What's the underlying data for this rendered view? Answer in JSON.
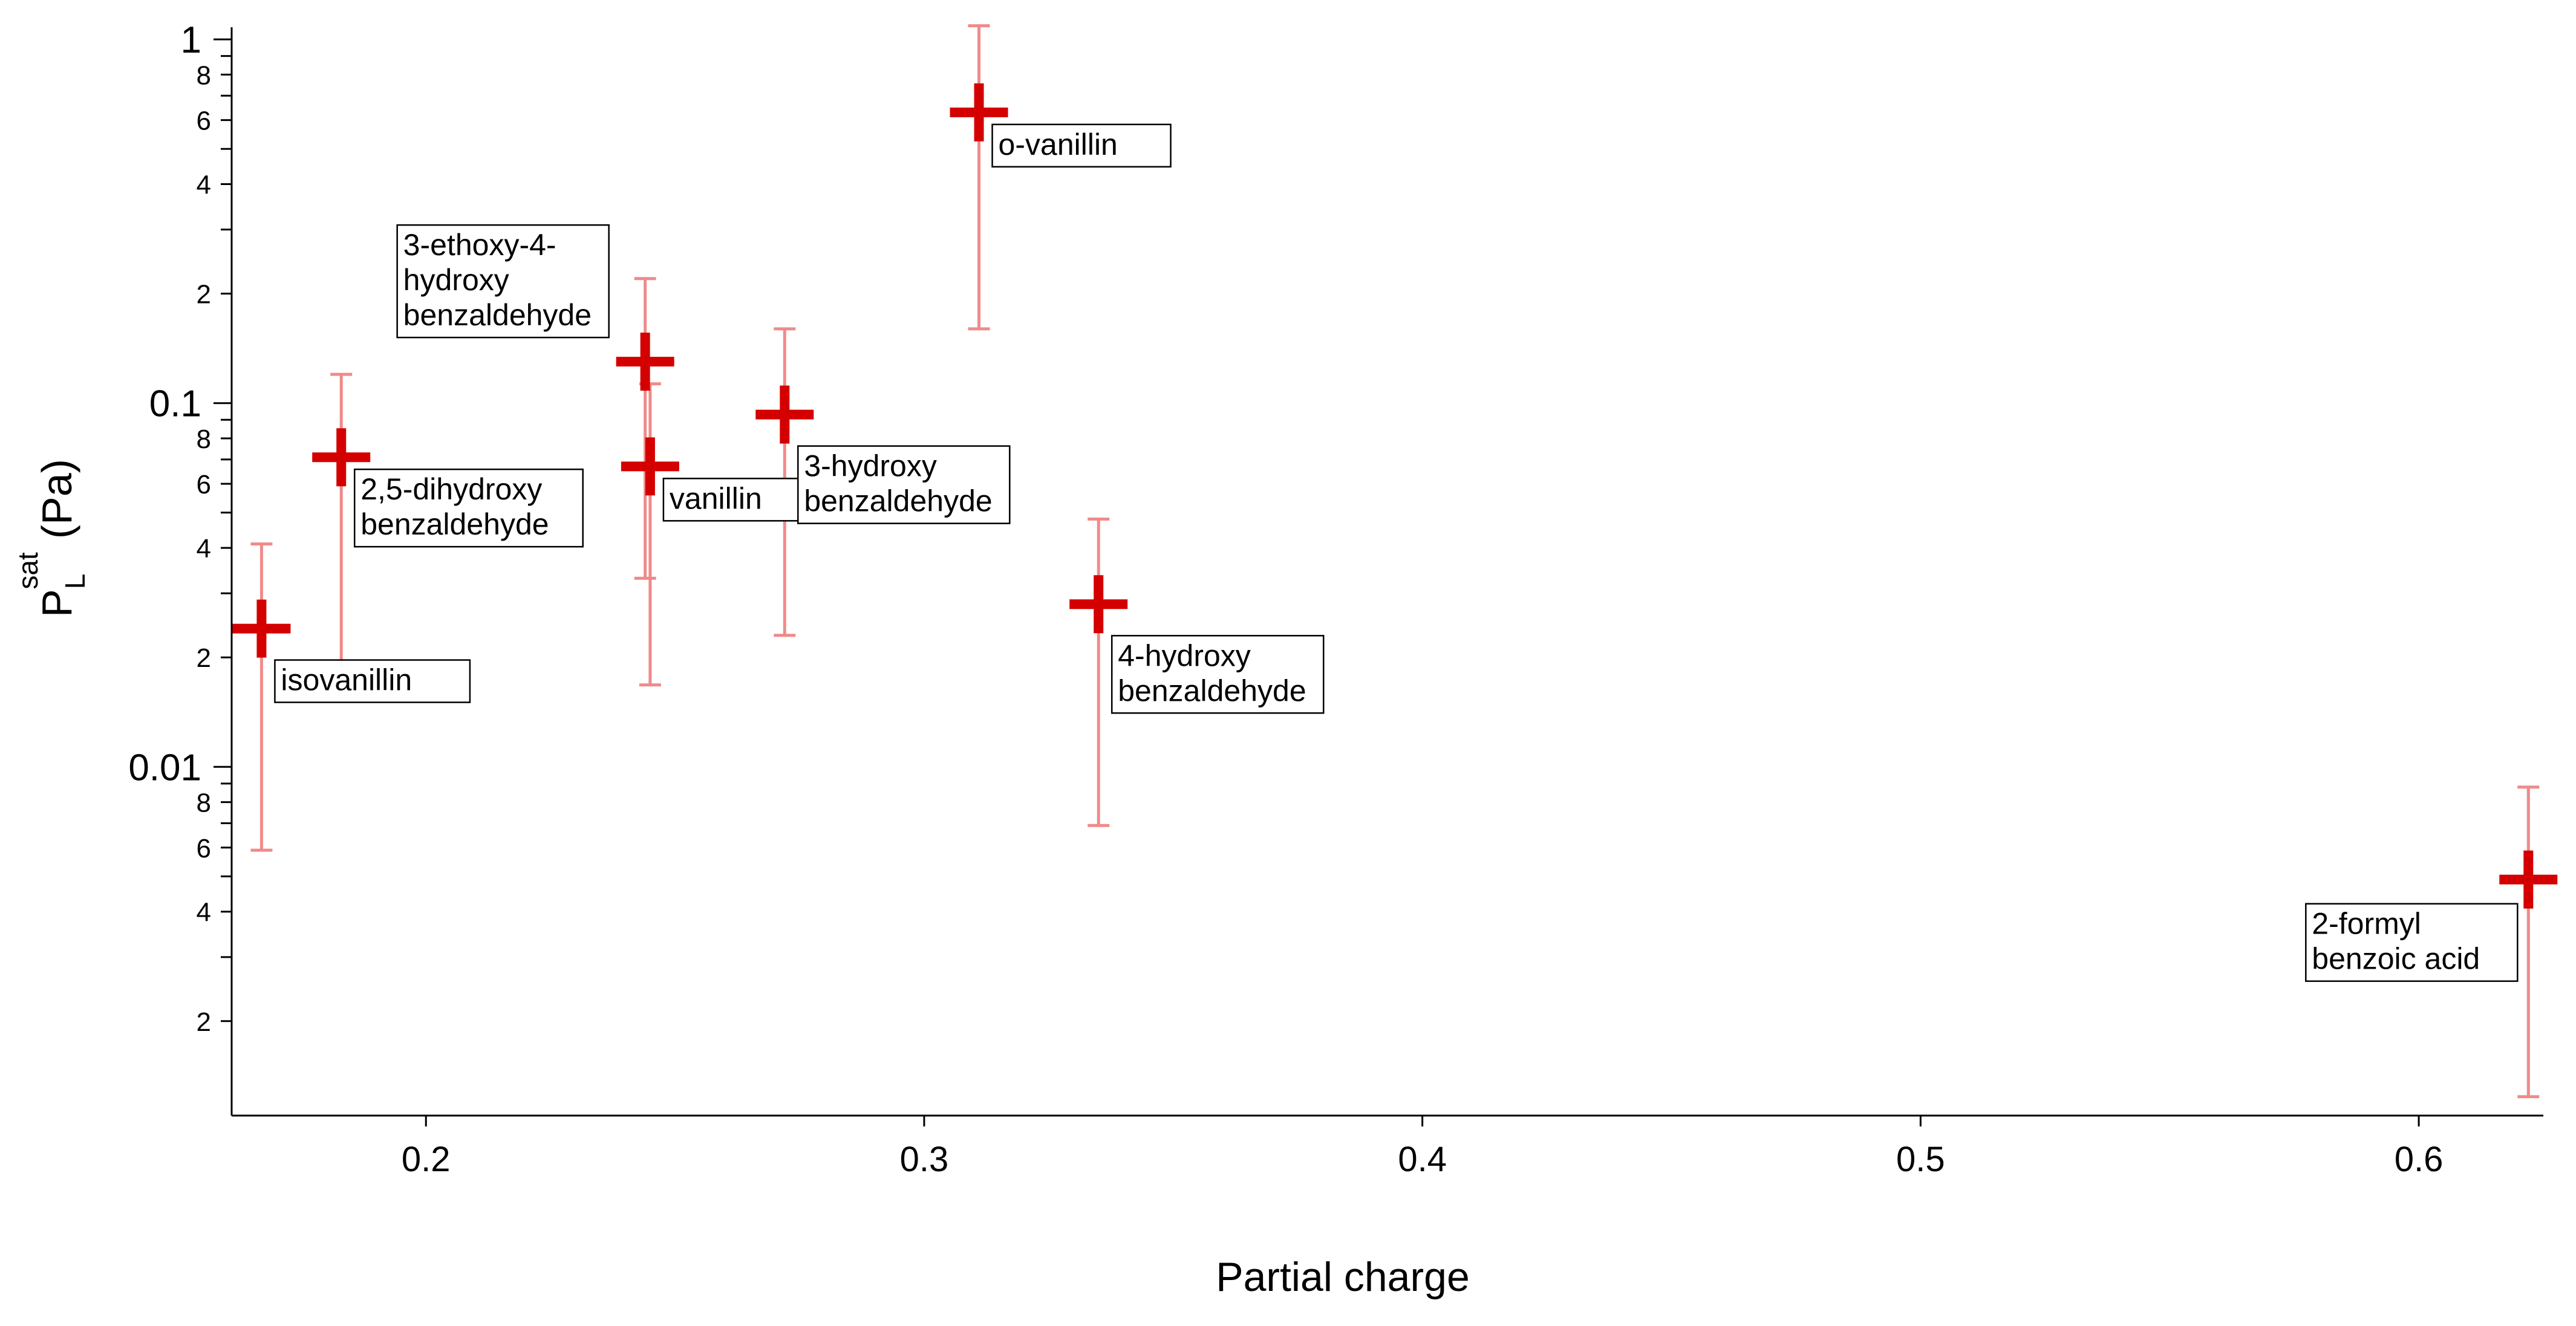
{
  "chart_data": {
    "type": "scatter",
    "title": "",
    "xlabel": "Partial charge",
    "ylabel": {
      "main": "P",
      "sub": "L",
      "sup": "sat",
      "unit": "(Pa)"
    },
    "xlim": [
      0.161,
      0.625
    ],
    "ylim": [
      0.0011,
      1.08
    ],
    "yscale": "log",
    "x_ticks": [
      {
        "value": 0.2,
        "label": "0.2"
      },
      {
        "value": 0.3,
        "label": "0.3"
      },
      {
        "value": 0.4,
        "label": "0.4"
      },
      {
        "value": 0.5,
        "label": "0.5"
      },
      {
        "value": 0.6,
        "label": "0.6"
      }
    ],
    "y_major_ticks": [
      {
        "value": 0.01,
        "label": "0.01"
      },
      {
        "value": 0.1,
        "label": "0.1"
      },
      {
        "value": 1,
        "label": "1"
      }
    ],
    "y_minor_ticks": [
      {
        "value": 0.002,
        "label": "2"
      },
      {
        "value": 0.003,
        "label": ""
      },
      {
        "value": 0.004,
        "label": "4"
      },
      {
        "value": 0.005,
        "label": ""
      },
      {
        "value": 0.006,
        "label": "6"
      },
      {
        "value": 0.007,
        "label": ""
      },
      {
        "value": 0.008,
        "label": "8"
      },
      {
        "value": 0.009,
        "label": ""
      },
      {
        "value": 0.02,
        "label": "2"
      },
      {
        "value": 0.03,
        "label": ""
      },
      {
        "value": 0.04,
        "label": "4"
      },
      {
        "value": 0.05,
        "label": ""
      },
      {
        "value": 0.06,
        "label": "6"
      },
      {
        "value": 0.07,
        "label": ""
      },
      {
        "value": 0.08,
        "label": "8"
      },
      {
        "value": 0.09,
        "label": ""
      },
      {
        "value": 0.2,
        "label": "2"
      },
      {
        "value": 0.3,
        "label": ""
      },
      {
        "value": 0.4,
        "label": "4"
      },
      {
        "value": 0.5,
        "label": ""
      },
      {
        "value": 0.6,
        "label": "6"
      },
      {
        "value": 0.7,
        "label": ""
      },
      {
        "value": 0.8,
        "label": "8"
      },
      {
        "value": 0.9,
        "label": ""
      }
    ],
    "points": [
      {
        "name": "isovanillin",
        "label_lines": [
          "isovanillin"
        ],
        "x": 0.167,
        "y": 0.024,
        "err_low": 0.0059,
        "err_high": 0.041,
        "label_side": "below-right"
      },
      {
        "name": "2,5-dihydroxy benzaldehyde",
        "label_lines": [
          "2,5-dihydroxy",
          "benzaldehyde"
        ],
        "x": 0.183,
        "y": 0.071,
        "err_low": 0.0175,
        "err_high": 0.12,
        "label_side": "right"
      },
      {
        "name": "3-ethoxy-4-hydroxy benzaldehyde",
        "label_lines": [
          "3-ethoxy-4-",
          "hydroxy",
          "benzaldehyde"
        ],
        "x": 0.244,
        "y": 0.13,
        "err_low": 0.033,
        "err_high": 0.22,
        "label_side": "above-left"
      },
      {
        "name": "vanillin",
        "label_lines": [
          "vanillin"
        ],
        "x": 0.245,
        "y": 0.067,
        "err_low": 0.0168,
        "err_high": 0.113,
        "label_side": "right"
      },
      {
        "name": "3-hydroxy benzaldehyde",
        "label_lines": [
          "3-hydroxy",
          "benzaldehyde"
        ],
        "x": 0.272,
        "y": 0.093,
        "err_low": 0.023,
        "err_high": 0.16,
        "label_side": "below-right"
      },
      {
        "name": "o-vanillin",
        "label_lines": [
          "o-vanillin"
        ],
        "x": 0.311,
        "y": 0.63,
        "err_low": 0.16,
        "err_high": 1.09,
        "label_side": "right"
      },
      {
        "name": "4-hydroxy benzaldehyde",
        "label_lines": [
          "4-hydroxy",
          "benzaldehyde"
        ],
        "x": 0.335,
        "y": 0.028,
        "err_low": 0.0069,
        "err_high": 0.048,
        "label_side": "below-right"
      },
      {
        "name": "2-formyl benzoic acid",
        "label_lines": [
          "2-formyl",
          "benzoic acid"
        ],
        "x": 0.622,
        "y": 0.0049,
        "err_low": 0.00124,
        "err_high": 0.0088,
        "label_side": "below-left"
      }
    ],
    "colors": {
      "marker": "#d40000",
      "errorbar": "#f08a8a"
    }
  }
}
